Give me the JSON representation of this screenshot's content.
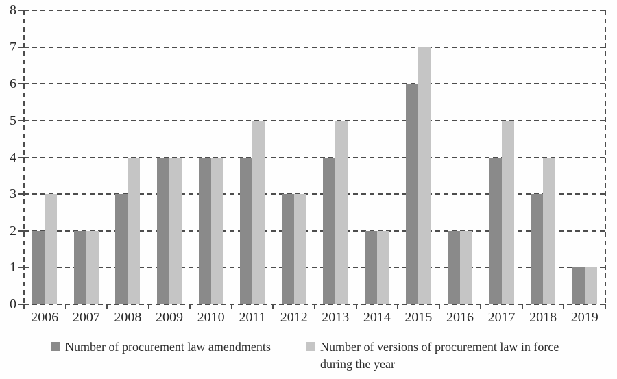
{
  "chart_data": {
    "type": "bar",
    "categories": [
      "2006",
      "2007",
      "2008",
      "2009",
      "2010",
      "2011",
      "2012",
      "2013",
      "2014",
      "2015",
      "2016",
      "2017",
      "2018",
      "2019"
    ],
    "series": [
      {
        "name": "Number of procurement law amendments",
        "color": "#8a8a8a",
        "values": [
          2,
          2,
          3,
          4,
          4,
          4,
          3,
          4,
          2,
          6,
          2,
          4,
          3,
          1
        ]
      },
      {
        "name": "Number of versions of procurement law in force during the year",
        "color": "#c5c5c5",
        "values": [
          3,
          2,
          4,
          4,
          4,
          5,
          3,
          5,
          2,
          7,
          2,
          5,
          4,
          1
        ]
      }
    ],
    "title": "",
    "xlabel": "",
    "ylabel": "",
    "ylim": [
      0,
      8
    ],
    "yticks": [
      "0",
      "1",
      "2",
      "3",
      "4",
      "5",
      "6",
      "7",
      "8"
    ],
    "grid": true,
    "grid_style": "dashed",
    "legend_position": "bottom"
  },
  "colors": {
    "axis_line": "#4d4d4d",
    "text": "#2b2b2b",
    "background": "#fefefe"
  }
}
